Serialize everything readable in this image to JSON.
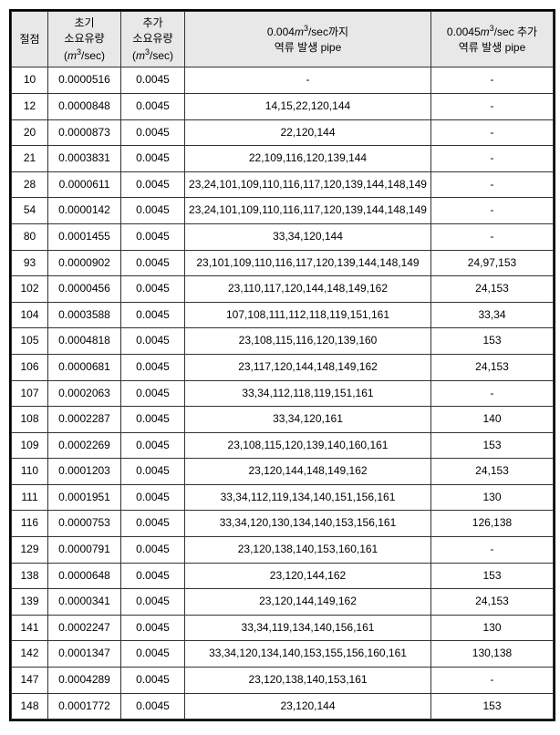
{
  "headers": {
    "col1": "절점",
    "col2_line1": "초기",
    "col2_line2": "소요유량",
    "col2_unit": "(m³/sec)",
    "col3_line1": "추가",
    "col3_line2": "소요유량",
    "col3_unit": "(m³/sec)",
    "col4_line1": "0.004m³/sec까지",
    "col4_line2": "역류 발생 pipe",
    "col5_line1": "0.0045m³/sec 추가",
    "col5_line2": "역류 발생 pipe"
  },
  "rows": [
    {
      "node": "10",
      "init": "0.0000516",
      "add": "0.0045",
      "pipes1": "-",
      "pipes2": "-"
    },
    {
      "node": "12",
      "init": "0.0000848",
      "add": "0.0045",
      "pipes1": "14,15,22,120,144",
      "pipes2": "-"
    },
    {
      "node": "20",
      "init": "0.0000873",
      "add": "0.0045",
      "pipes1": "22,120,144",
      "pipes2": "-"
    },
    {
      "node": "21",
      "init": "0.0003831",
      "add": "0.0045",
      "pipes1": "22,109,116,120,139,144",
      "pipes2": "-"
    },
    {
      "node": "28",
      "init": "0.0000611",
      "add": "0.0045",
      "pipes1": "23,24,101,109,110,116,117,120,139,144,148,149",
      "pipes2": "-"
    },
    {
      "node": "54",
      "init": "0.0000142",
      "add": "0.0045",
      "pipes1": "23,24,101,109,110,116,117,120,139,144,148,149",
      "pipes2": "-"
    },
    {
      "node": "80",
      "init": "0.0001455",
      "add": "0.0045",
      "pipes1": "33,34,120,144",
      "pipes2": "-"
    },
    {
      "node": "93",
      "init": "0.0000902",
      "add": "0.0045",
      "pipes1": "23,101,109,110,116,117,120,139,144,148,149",
      "pipes2": "24,97,153"
    },
    {
      "node": "102",
      "init": "0.0000456",
      "add": "0.0045",
      "pipes1": "23,110,117,120,144,148,149,162",
      "pipes2": "24,153"
    },
    {
      "node": "104",
      "init": "0.0003588",
      "add": "0.0045",
      "pipes1": "107,108,111,112,118,119,151,161",
      "pipes2": "33,34"
    },
    {
      "node": "105",
      "init": "0.0004818",
      "add": "0.0045",
      "pipes1": "23,108,115,116,120,139,160",
      "pipes2": "153"
    },
    {
      "node": "106",
      "init": "0.0000681",
      "add": "0.0045",
      "pipes1": "23,117,120,144,148,149,162",
      "pipes2": "24,153"
    },
    {
      "node": "107",
      "init": "0.0002063",
      "add": "0.0045",
      "pipes1": "33,34,112,118,119,151,161",
      "pipes2": "-"
    },
    {
      "node": "108",
      "init": "0.0002287",
      "add": "0.0045",
      "pipes1": "33,34,120,161",
      "pipes2": "140"
    },
    {
      "node": "109",
      "init": "0.0002269",
      "add": "0.0045",
      "pipes1": "23,108,115,120,139,140,160,161",
      "pipes2": "153"
    },
    {
      "node": "110",
      "init": "0.0001203",
      "add": "0.0045",
      "pipes1": "23,120,144,148,149,162",
      "pipes2": "24,153"
    },
    {
      "node": "111",
      "init": "0.0001951",
      "add": "0.0045",
      "pipes1": "33,34,112,119,134,140,151,156,161",
      "pipes2": "130"
    },
    {
      "node": "116",
      "init": "0.0000753",
      "add": "0.0045",
      "pipes1": "33,34,120,130,134,140,153,156,161",
      "pipes2": "126,138"
    },
    {
      "node": "129",
      "init": "0.0000791",
      "add": "0.0045",
      "pipes1": "23,120,138,140,153,160,161",
      "pipes2": "-"
    },
    {
      "node": "138",
      "init": "0.0000648",
      "add": "0.0045",
      "pipes1": "23,120,144,162",
      "pipes2": "153"
    },
    {
      "node": "139",
      "init": "0.0000341",
      "add": "0.0045",
      "pipes1": "23,120,144,149,162",
      "pipes2": "24,153"
    },
    {
      "node": "141",
      "init": "0.0002247",
      "add": "0.0045",
      "pipes1": "33,34,119,134,140,156,161",
      "pipes2": "130"
    },
    {
      "node": "142",
      "init": "0.0001347",
      "add": "0.0045",
      "pipes1": "33,34,120,134,140,153,155,156,160,161",
      "pipes2": "130,138"
    },
    {
      "node": "147",
      "init": "0.0004289",
      "add": "0.0045",
      "pipes1": "23,120,138,140,153,161",
      "pipes2": "-"
    },
    {
      "node": "148",
      "init": "0.0001772",
      "add": "0.0045",
      "pipes1": "23,120,144",
      "pipes2": "153"
    }
  ]
}
